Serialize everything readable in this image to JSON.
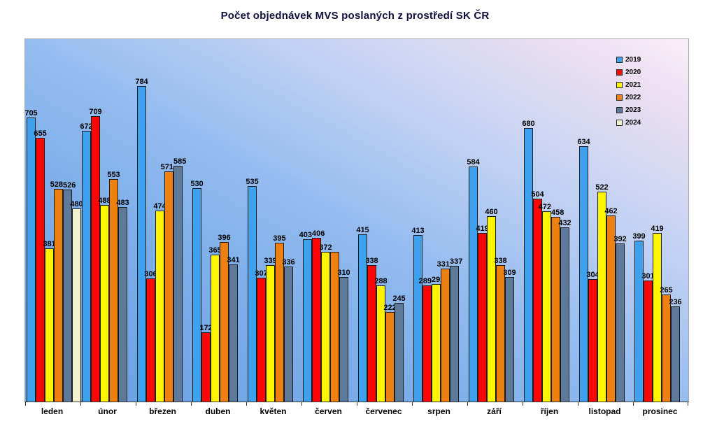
{
  "chart": {
    "title": "Počet objednávek MVS poslaných z prostředí SK ČR",
    "plot_background": {
      "from": "#689FE2",
      "to": "#F9EFF7"
    }
  },
  "chart_data": {
    "type": "bar",
    "title": "Počet objednávek MVS poslaných z prostředí SK ČR",
    "xlabel": "",
    "ylabel": "",
    "ylim": [
      0,
      900
    ],
    "grid": false,
    "data_labels": true,
    "legend_position": "top-right",
    "categories": [
      "leden",
      "únor",
      "březen",
      "duben",
      "květen",
      "červen",
      "červenec",
      "srpen",
      "září",
      "říjen",
      "listopad",
      "prosinec"
    ],
    "series": [
      {
        "name": "2019",
        "color": "#3DA1EE",
        "values": [
          705,
          672,
          784,
          530,
          535,
          403,
          415,
          413,
          584,
          680,
          634,
          399
        ]
      },
      {
        "name": "2020",
        "color": "#FB0505",
        "values": [
          655,
          709,
          306,
          172,
          307,
          406,
          338,
          289,
          419,
          504,
          304,
          301
        ]
      },
      {
        "name": "2021",
        "color": "#FFF400",
        "values": [
          381,
          488,
          474,
          365,
          339,
          372,
          288,
          292,
          460,
          472,
          522,
          419
        ]
      },
      {
        "name": "2022",
        "color": "#EE8011",
        "values": [
          528,
          553,
          571,
          396,
          395,
          372,
          222,
          331,
          338,
          458,
          462,
          265
        ]
      },
      {
        "name": "2023",
        "color": "#5E7A9B",
        "values": [
          526,
          483,
          585,
          341,
          336,
          310,
          245,
          337,
          309,
          432,
          392,
          236
        ]
      },
      {
        "name": "2024",
        "color": "#F1F0CF",
        "values": [
          480,
          null,
          null,
          null,
          null,
          null,
          null,
          null,
          null,
          null,
          null,
          null
        ]
      }
    ]
  }
}
